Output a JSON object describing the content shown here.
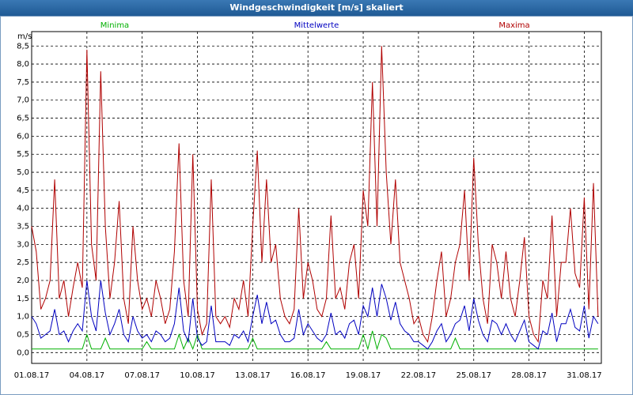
{
  "chart_data": {
    "type": "line",
    "title": "Windgeschwindigkeit [m/s] skaliert",
    "y_label": "m/s",
    "categories": [
      "01.08.17",
      null,
      null,
      null,
      null,
      null,
      null,
      null,
      null,
      null,
      null,
      null,
      "04.08.17",
      null,
      null,
      null,
      null,
      null,
      null,
      null,
      null,
      null,
      null,
      null,
      "07.08.17",
      null,
      null,
      null,
      null,
      null,
      null,
      null,
      null,
      null,
      null,
      null,
      "10.08.17",
      null,
      null,
      null,
      null,
      null,
      null,
      null,
      null,
      null,
      null,
      null,
      "13.08.17",
      null,
      null,
      null,
      null,
      null,
      null,
      null,
      null,
      null,
      null,
      null,
      "16.08.17",
      null,
      null,
      null,
      null,
      null,
      null,
      null,
      null,
      null,
      null,
      null,
      "19.08.17",
      null,
      null,
      null,
      null,
      null,
      null,
      null,
      null,
      null,
      null,
      null,
      "22.08.17",
      null,
      null,
      null,
      null,
      null,
      null,
      null,
      null,
      null,
      null,
      null,
      "25.08.17",
      null,
      null,
      null,
      null,
      null,
      null,
      null,
      null,
      null,
      null,
      null,
      "28.08.17",
      null,
      null,
      null,
      null,
      null,
      null,
      null,
      null,
      null,
      null,
      null,
      "31.08.17",
      null,
      null,
      null
    ],
    "series": [
      {
        "name": "Minima",
        "color": "#00b000",
        "values": [
          0.1,
          0.1,
          0.1,
          0.1,
          0.1,
          0.1,
          0.1,
          0.1,
          0.1,
          0.1,
          0.1,
          0.1,
          0.5,
          0.1,
          0.1,
          0.1,
          0.4,
          0.1,
          0.1,
          0.1,
          0.1,
          0.1,
          0.1,
          0.1,
          0.1,
          0.3,
          0.1,
          0.1,
          0.1,
          0.1,
          0.1,
          0.1,
          0.5,
          0.1,
          0.4,
          0.1,
          0.5,
          0.1,
          0.1,
          0.1,
          0.1,
          0.1,
          0.1,
          0.1,
          0.1,
          0.1,
          0.1,
          0.1,
          0.4,
          0.1,
          0.1,
          0.1,
          0.1,
          0.1,
          0.1,
          0.1,
          0.1,
          0.1,
          0.1,
          0.1,
          0.1,
          0.1,
          0.1,
          0.1,
          0.3,
          0.1,
          0.1,
          0.1,
          0.1,
          0.1,
          0.1,
          0.1,
          0.5,
          0.1,
          0.6,
          0.1,
          0.5,
          0.4,
          0.1,
          0.1,
          0.1,
          0.1,
          0.1,
          0.1,
          0.1,
          0.1,
          0.1,
          0.1,
          0.1,
          0.1,
          0.1,
          0.1,
          0.4,
          0.1,
          0.1,
          0.1,
          0.1,
          0.1,
          0.1,
          0.1,
          0.1,
          0.1,
          0.1,
          0.1,
          0.1,
          0.1,
          0.1,
          0.1,
          0.1,
          0.1,
          0.1,
          0.1,
          0.1,
          0.1,
          0.1,
          0.1,
          0.1,
          0.1,
          0.1,
          0.1,
          0.1,
          0.1,
          0.1,
          0.1
        ]
      },
      {
        "name": "Mittelwerte",
        "color": "#0000c0",
        "values": [
          1.0,
          0.8,
          0.4,
          0.5,
          0.6,
          1.2,
          0.5,
          0.6,
          0.3,
          0.6,
          0.8,
          0.6,
          2.0,
          1.0,
          0.6,
          2.0,
          1.1,
          0.5,
          0.8,
          1.2,
          0.5,
          0.3,
          1.0,
          0.6,
          0.4,
          0.5,
          0.3,
          0.6,
          0.5,
          0.3,
          0.4,
          0.8,
          1.8,
          0.6,
          0.3,
          1.5,
          0.4,
          0.2,
          0.3,
          1.3,
          0.3,
          0.3,
          0.3,
          0.2,
          0.5,
          0.4,
          0.6,
          0.3,
          1.0,
          1.6,
          0.8,
          1.4,
          0.8,
          0.9,
          0.5,
          0.3,
          0.3,
          0.4,
          1.2,
          0.5,
          0.8,
          0.6,
          0.4,
          0.3,
          0.5,
          1.1,
          0.5,
          0.6,
          0.4,
          0.8,
          0.9,
          0.5,
          1.3,
          1.0,
          1.8,
          1.0,
          1.9,
          1.5,
          0.9,
          1.4,
          0.8,
          0.6,
          0.5,
          0.3,
          0.3,
          0.2,
          0.1,
          0.3,
          0.6,
          0.8,
          0.3,
          0.5,
          0.8,
          0.9,
          1.3,
          0.6,
          1.5,
          0.9,
          0.5,
          0.3,
          0.9,
          0.8,
          0.5,
          0.8,
          0.5,
          0.3,
          0.6,
          0.9,
          0.3,
          0.2,
          0.1,
          0.6,
          0.5,
          1.1,
          0.3,
          0.8,
          0.8,
          1.2,
          0.7,
          0.6,
          1.3,
          0.4,
          1.0,
          0.8
        ]
      },
      {
        "name": "Maxima",
        "color": "#b00000",
        "values": [
          3.5,
          2.8,
          1.2,
          1.5,
          2.0,
          4.8,
          1.5,
          2.0,
          1.0,
          1.8,
          2.5,
          1.8,
          8.4,
          3.0,
          2.0,
          7.8,
          3.5,
          1.5,
          2.5,
          4.2,
          1.5,
          0.8,
          3.5,
          2.0,
          1.2,
          1.5,
          1.0,
          2.0,
          1.5,
          0.8,
          1.2,
          2.8,
          5.8,
          2.0,
          1.0,
          5.5,
          1.2,
          0.5,
          0.8,
          4.8,
          1.0,
          0.8,
          1.0,
          0.7,
          1.5,
          1.2,
          2.0,
          1.0,
          3.5,
          5.6,
          2.5,
          4.8,
          2.5,
          3.0,
          1.5,
          1.0,
          0.8,
          1.2,
          4.0,
          1.5,
          2.5,
          2.0,
          1.2,
          1.0,
          1.5,
          3.8,
          1.5,
          1.8,
          1.2,
          2.5,
          3.0,
          1.5,
          4.5,
          3.5,
          7.5,
          3.5,
          8.5,
          5.0,
          3.0,
          4.8,
          2.5,
          2.0,
          1.5,
          0.8,
          1.0,
          0.5,
          0.3,
          1.0,
          2.0,
          2.8,
          1.0,
          1.5,
          2.5,
          3.0,
          4.5,
          2.0,
          5.4,
          3.0,
          1.5,
          0.8,
          3.0,
          2.5,
          1.5,
          2.8,
          1.5,
          1.0,
          2.0,
          3.2,
          1.0,
          0.5,
          0.3,
          2.0,
          1.5,
          3.8,
          1.0,
          2.5,
          2.5,
          4.0,
          2.2,
          1.8,
          4.3,
          1.2,
          4.7,
          1.0
        ]
      }
    ],
    "ylim": [
      -0.3,
      8.9
    ],
    "yticks": [
      {
        "value": 0,
        "label": "0,0"
      },
      {
        "value": 0.5,
        "label": "0,5"
      },
      {
        "value": 1,
        "label": "1,0"
      },
      {
        "value": 1.5,
        "label": "1,5"
      },
      {
        "value": 2,
        "label": "2,0"
      },
      {
        "value": 2.5,
        "label": "2,5"
      },
      {
        "value": 3,
        "label": "3,0"
      },
      {
        "value": 3.5,
        "label": "3,5"
      },
      {
        "value": 4,
        "label": "4,0"
      },
      {
        "value": 4.5,
        "label": "4,5"
      },
      {
        "value": 5,
        "label": "5,0"
      },
      {
        "value": 5.5,
        "label": "5,5"
      },
      {
        "value": 6,
        "label": "6,0"
      },
      {
        "value": 6.5,
        "label": "6,5"
      },
      {
        "value": 7,
        "label": "7,0"
      },
      {
        "value": 7.5,
        "label": "7,5"
      },
      {
        "value": 8,
        "label": "8,0"
      },
      {
        "value": 8.5,
        "label": "8,5"
      }
    ],
    "grid": true
  }
}
